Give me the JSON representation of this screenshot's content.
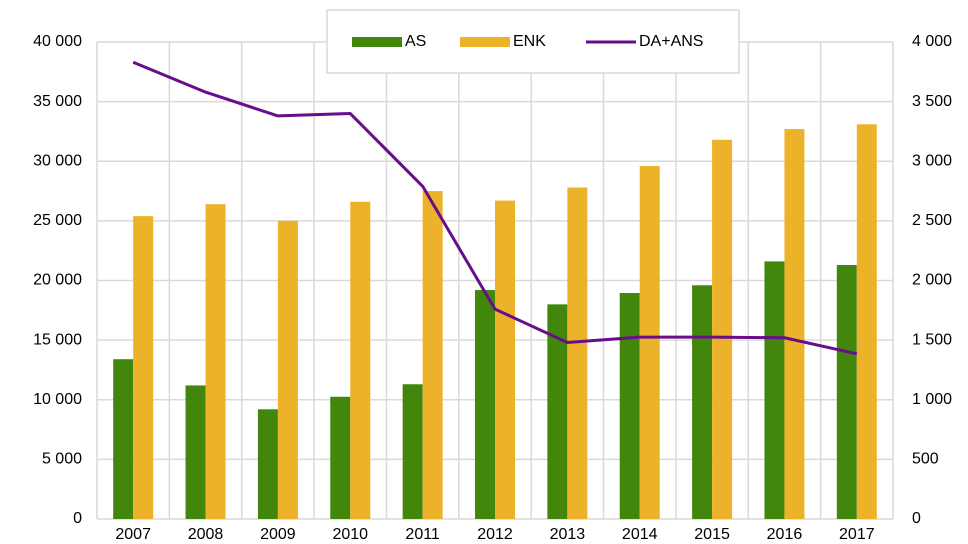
{
  "chart_data": {
    "type": "bar_line",
    "categories": [
      "2007",
      "2008",
      "2009",
      "2010",
      "2011",
      "2012",
      "2013",
      "2014",
      "2015",
      "2016",
      "2017"
    ],
    "series": [
      {
        "name": "AS",
        "color": "#43860c",
        "type": "bar",
        "values": [
          13400,
          11200,
          9200,
          10250,
          11300,
          19200,
          18000,
          18950,
          19600,
          21600,
          21300
        ]
      },
      {
        "name": "ENK",
        "color": "#ecb32a",
        "type": "bar",
        "values": [
          25400,
          26400,
          25000,
          26600,
          27500,
          26700,
          27800,
          29600,
          31800,
          32700,
          33100
        ]
      },
      {
        "name": "DA+ANS",
        "color": "#6a0d8a",
        "type": "line",
        "axis": "y2",
        "values": [
          3830,
          3580,
          3380,
          3400,
          2790,
          1760,
          1480,
          1525,
          1525,
          1520,
          1385
        ]
      }
    ],
    "ylim": [
      0,
      40000
    ],
    "yticks": [
      0,
      {
        "value": 5000,
        "label": "5 000"
      },
      {
        "value": 10000,
        "label": "10 000"
      },
      {
        "value": 15000,
        "label": "15 000"
      },
      {
        "value": 20000,
        "label": "20 000"
      },
      {
        "value": 25000,
        "label": "25 000"
      },
      {
        "value": 30000,
        "label": "30 000"
      },
      {
        "value": 35000,
        "label": "35 000"
      },
      {
        "value": 40000,
        "label": "40 000"
      }
    ],
    "y2lim": [
      0,
      4000
    ],
    "y2ticks": [
      0,
      500,
      {
        "value": 1000,
        "label": "1 000"
      },
      {
        "value": 1500,
        "label": "1 500"
      },
      {
        "value": 2000,
        "label": "2 000"
      },
      {
        "value": 2500,
        "label": "2 500"
      },
      {
        "value": 3000,
        "label": "3 000"
      },
      {
        "value": 3500,
        "label": "3 500"
      },
      {
        "value": 4000,
        "label": "4 000"
      }
    ],
    "grid": true,
    "legend": "top"
  }
}
